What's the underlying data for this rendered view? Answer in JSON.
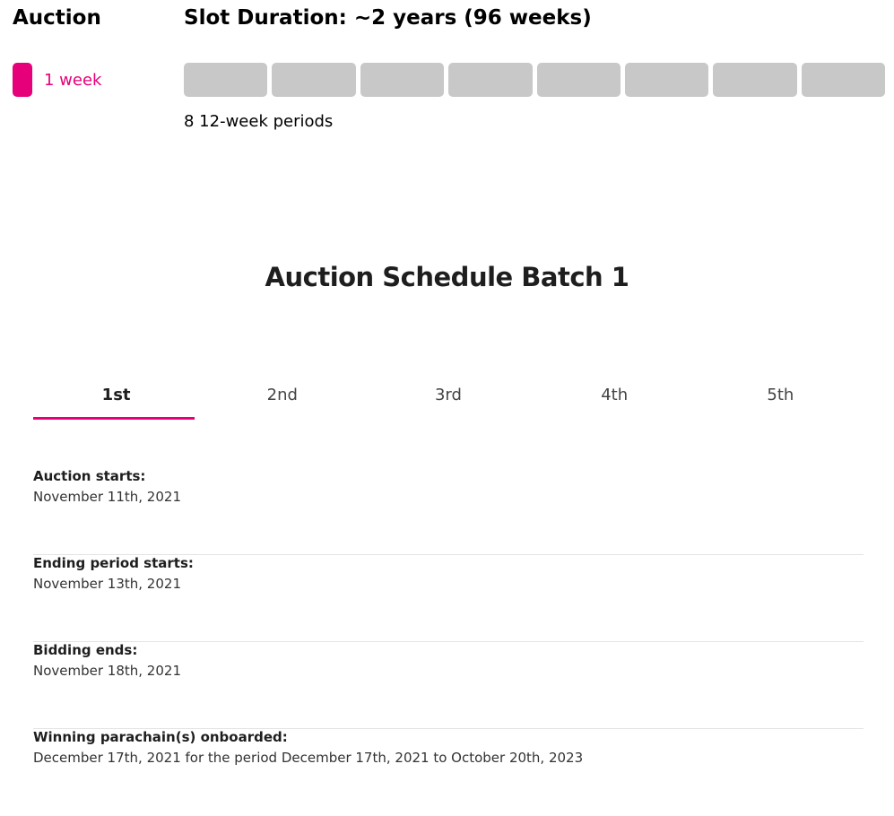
{
  "auction_panel": {
    "heading": "Auction",
    "week_label": "1 week",
    "accent_color": "#e6007a"
  },
  "slot_panel": {
    "heading": "Slot Duration: ~2 years (96 weeks)",
    "period_count": 8,
    "period_color": "#c8c8c8",
    "caption": "8 12-week periods"
  },
  "schedule": {
    "title": "Auction Schedule Batch 1",
    "tabs": [
      {
        "label": "1st",
        "active": true
      },
      {
        "label": "2nd",
        "active": false
      },
      {
        "label": "3rd",
        "active": false
      },
      {
        "label": "4th",
        "active": false
      },
      {
        "label": "5th",
        "active": false
      }
    ],
    "details": [
      {
        "label": "Auction starts:",
        "value": "November 11th, 2021"
      },
      {
        "label": "Ending period starts:",
        "value": "November 13th, 2021"
      },
      {
        "label": "Bidding ends:",
        "value": "November 18th, 2021"
      },
      {
        "label": "Winning parachain(s) onboarded:",
        "value": "December 17th, 2021 for the period December 17th, 2021 to October 20th, 2023"
      }
    ]
  }
}
